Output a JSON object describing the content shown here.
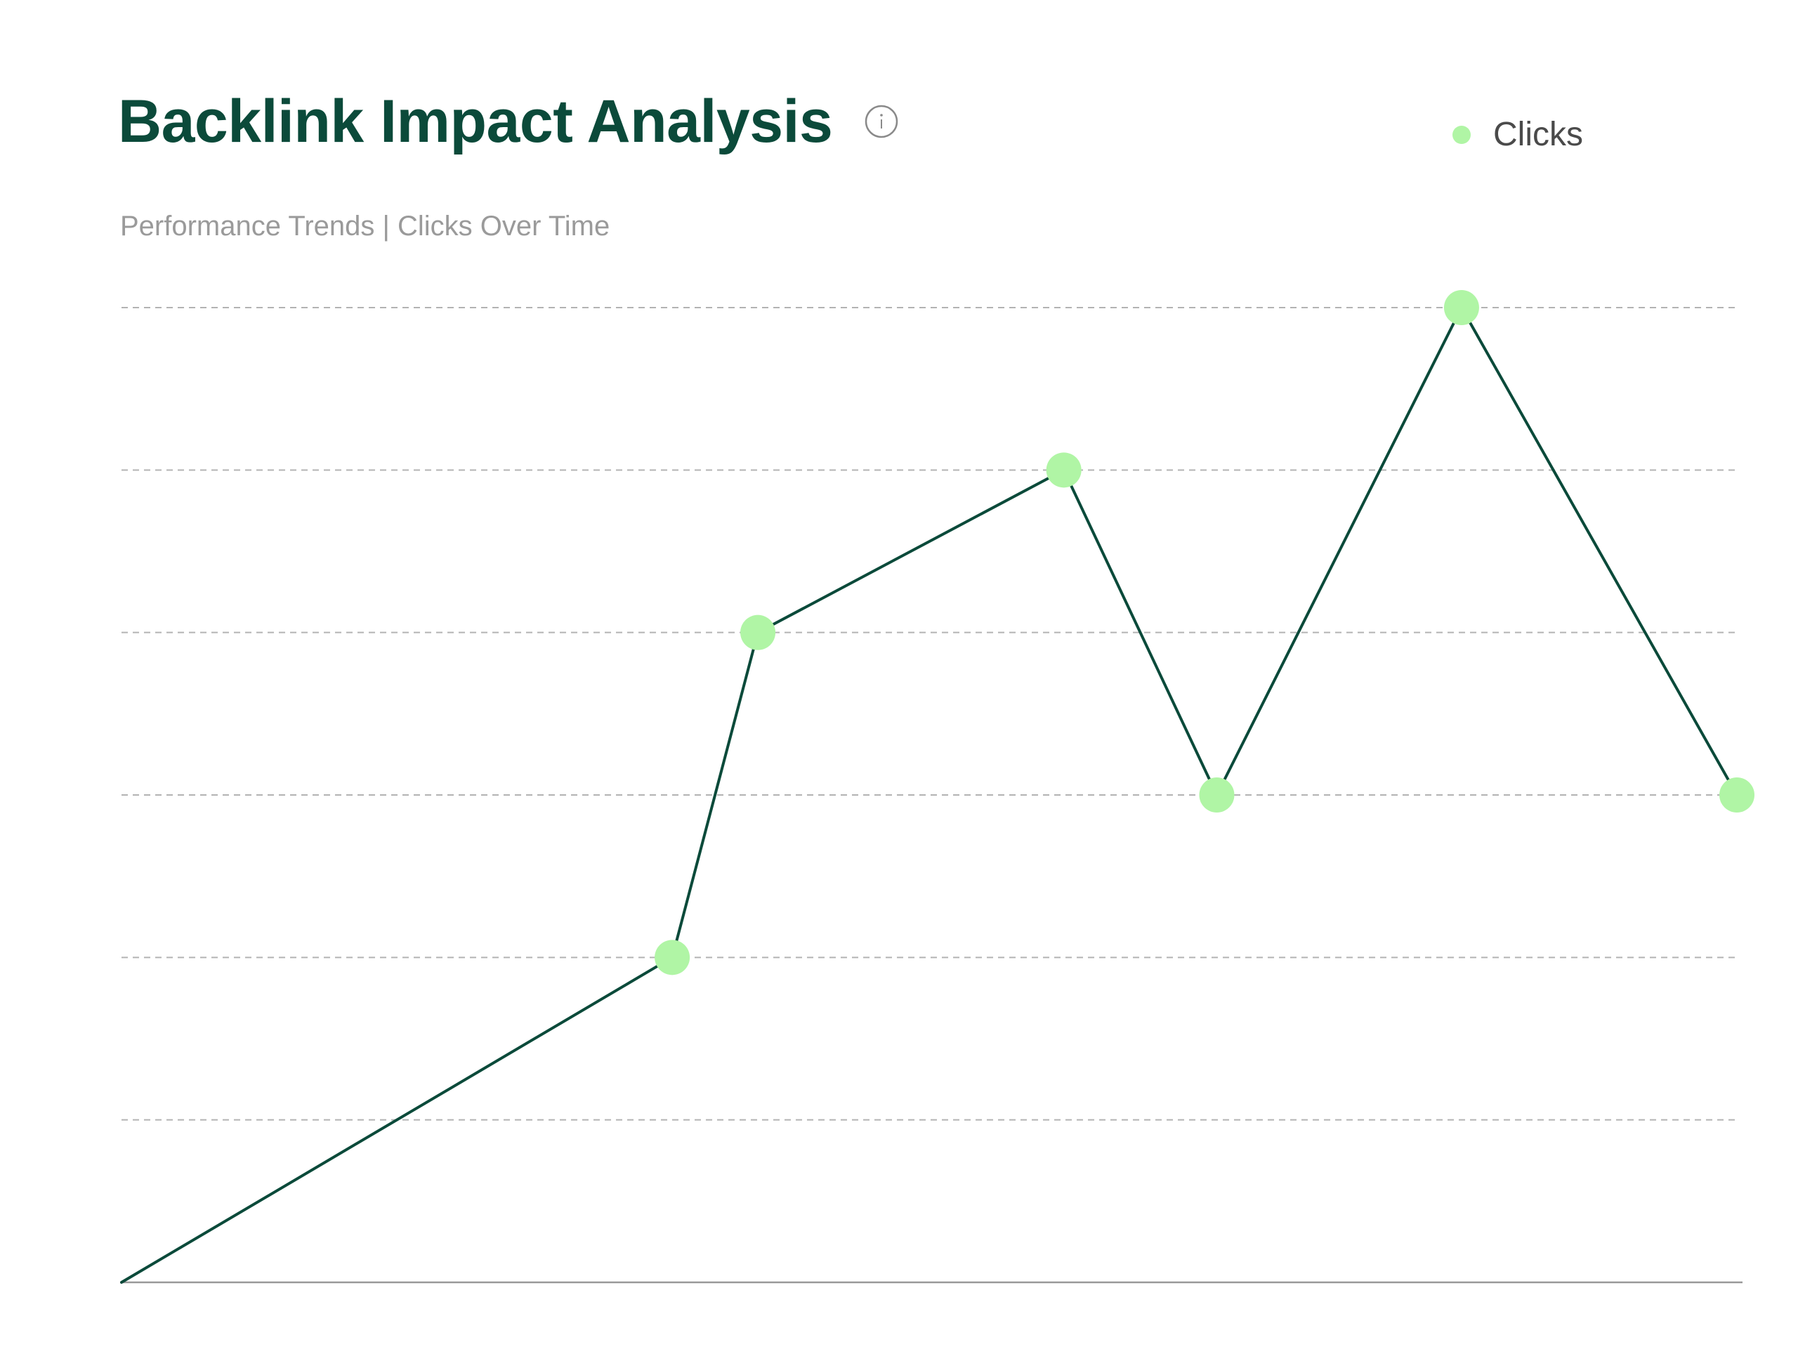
{
  "header": {
    "title": "Backlink Impact Analysis",
    "subtitle": "Performance Trends | Clicks Over Time",
    "info_icon": "info-circle-icon"
  },
  "colors": {
    "title": "#0b4a3a",
    "line": "#0b4a3a",
    "marker": "#b0f5a5",
    "grid": "#b3b3b3",
    "axis": "#999999",
    "subtitle": "#9a9a9a"
  },
  "chart_data": {
    "type": "line",
    "title": "Backlink Impact Analysis",
    "subtitle": "Performance Trends | Clicks Over Time",
    "xlabel": "",
    "ylabel": "",
    "ylim": [
      0,
      6
    ],
    "grid": true,
    "grid_style": "dashed",
    "legend_position": "top-right",
    "series": [
      {
        "name": "Clicks",
        "x": [
          0,
          4.5,
          5.2,
          7.7,
          8.95,
          10.95,
          13.2
        ],
        "values": [
          0,
          2,
          4,
          5,
          3,
          6,
          3
        ]
      }
    ],
    "xlim": [
      0,
      13.2
    ],
    "markers_from_index": 1
  }
}
